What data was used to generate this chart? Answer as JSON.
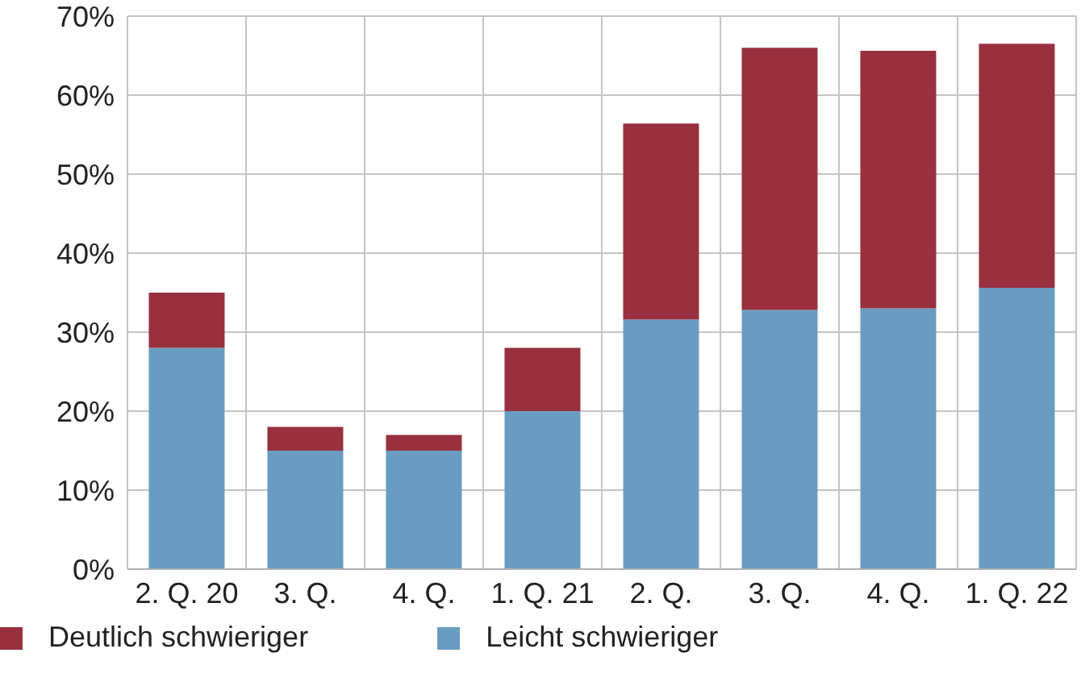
{
  "chart_data": {
    "type": "bar",
    "stacked": true,
    "categories": [
      "2. Q. 20",
      "3. Q.",
      "4. Q.",
      "1. Q. 21",
      "2. Q.",
      "3. Q.",
      "4. Q.",
      "1. Q. 22"
    ],
    "series": [
      {
        "name": "Leicht schwieriger",
        "color": "#6a9cc1",
        "values": [
          28,
          15,
          15,
          20,
          31.6,
          32.8,
          33,
          35.6
        ]
      },
      {
        "name": "Deutlich schwieriger",
        "color": "#98303e",
        "values": [
          7,
          3,
          2,
          8,
          24.8,
          33.2,
          32.6,
          30.9
        ]
      }
    ],
    "ylim": [
      0,
      70
    ],
    "yticks": [
      {
        "value": 0,
        "label": "0%"
      },
      {
        "value": 10,
        "label": "10%"
      },
      {
        "value": 20,
        "label": "20%"
      },
      {
        "value": 30,
        "label": "30%"
      },
      {
        "value": 40,
        "label": "40%"
      },
      {
        "value": 50,
        "label": "50%"
      },
      {
        "value": 60,
        "label": "60%"
      },
      {
        "value": 70,
        "label": "70%"
      }
    ],
    "grid": true,
    "legend": "bottom left"
  }
}
